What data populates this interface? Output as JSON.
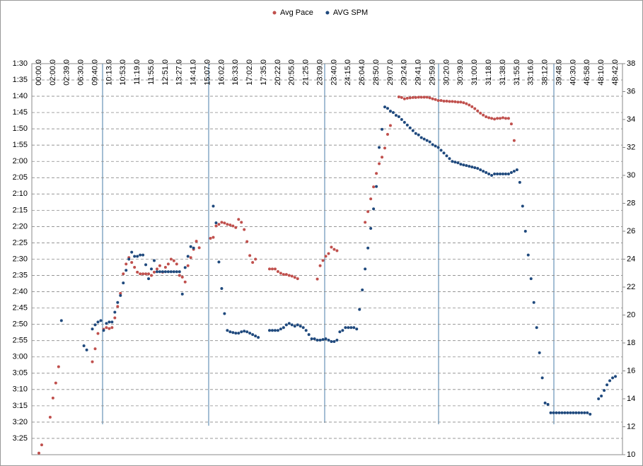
{
  "chart_data": {
    "type": "scatter",
    "categories": [
      "00:00.0",
      null,
      null,
      null,
      null,
      "02:00.0",
      null,
      null,
      null,
      null,
      "02:39.0",
      null,
      null,
      null,
      null,
      "06:30.0",
      null,
      null,
      null,
      null,
      "09:40.0",
      null,
      null,
      null,
      null,
      "10:13.0",
      null,
      null,
      null,
      null,
      "10:53.0",
      null,
      null,
      null,
      null,
      "11:19.0",
      null,
      null,
      null,
      null,
      "11:55.0",
      null,
      null,
      null,
      null,
      "12:51.0",
      null,
      null,
      null,
      null,
      "13:27.0",
      null,
      null,
      null,
      null,
      "14:41.0",
      null,
      null,
      null,
      null,
      "15:07.0",
      null,
      null,
      null,
      null,
      "16:02.0",
      null,
      null,
      null,
      null,
      "16:33.0",
      null,
      null,
      null,
      null,
      "17:02.0",
      null,
      null,
      null,
      null,
      "17:35.0",
      null,
      null,
      null,
      null,
      "20:22.0",
      null,
      null,
      null,
      null,
      "20:55.0",
      null,
      null,
      null,
      null,
      "21:25.0",
      null,
      null,
      null,
      null,
      "23:09.0",
      null,
      null,
      null,
      null,
      "23:40.0",
      null,
      null,
      null,
      null,
      "24:15.0",
      null,
      null,
      null,
      null,
      "26:04.0",
      null,
      null,
      null,
      null,
      "28:50.0",
      null,
      null,
      null,
      null,
      "29:07.0",
      null,
      null,
      null,
      null,
      "29:24.0",
      null,
      null,
      null,
      null,
      "29:41.0",
      null,
      null,
      null,
      null,
      "29:59.0",
      null,
      null,
      null,
      null,
      "30:20.0",
      null,
      null,
      null,
      null,
      "30:39.0",
      null,
      null,
      null,
      null,
      "31:00.0",
      null,
      null,
      null,
      null,
      "31:18.0",
      null,
      null,
      null,
      null,
      "31:38.0",
      null,
      null,
      null,
      null,
      "31:55.0",
      null,
      null,
      null,
      null,
      "33:16.0",
      null,
      null,
      null,
      null,
      "38:12.0",
      null,
      null,
      null,
      null,
      "39:48.0",
      null,
      null,
      null,
      null,
      "40:30.0",
      null,
      null,
      null,
      null,
      "46:58.0",
      null,
      null,
      null,
      null,
      "48:10.0",
      null,
      null,
      null,
      null,
      "48:42.0"
    ],
    "series": [
      {
        "name": "Avg Pace",
        "color": "#c0504d",
        "axis": "y",
        "values": [
          209.5,
          207,
          null,
          null,
          198.5,
          192.6,
          188,
          183,
          null,
          null,
          null,
          null,
          null,
          null,
          null,
          null,
          null,
          null,
          null,
          181.5,
          177.5,
          172.8,
          null,
          171.5,
          171,
          171.3,
          171,
          168,
          164.5,
          160.5,
          154.5,
          151.5,
          149.5,
          151,
          152.5,
          154,
          154.5,
          154.5,
          154.5,
          154.5,
          155,
          154,
          153,
          152,
          154,
          152.5,
          151.5,
          150,
          150.5,
          151.5,
          155,
          155.5,
          157,
          152,
          149.5,
          147,
          144.5,
          146.5,
          null,
          null,
          null,
          143.6,
          143.3,
          139.8,
          139.3,
          138.7,
          138.9,
          139.3,
          139.5,
          139.8,
          140.3,
          137.8,
          138.7,
          140.9,
          144.6,
          148.9,
          151,
          150,
          null,
          null,
          null,
          null,
          153,
          153,
          153,
          153.8,
          154.3,
          154.7,
          154.7,
          155,
          155.2,
          155.6,
          156,
          null,
          null,
          null,
          null,
          null,
          null,
          156.1,
          152,
          150.4,
          149.1,
          148.3,
          146.3,
          147,
          147.4,
          null,
          null,
          null,
          null,
          null,
          null,
          null,
          null,
          null,
          138.7,
          135.4,
          131.5,
          127.8,
          123.7,
          120.7,
          118.7,
          115.9,
          111.7,
          109,
          null,
          null,
          100.2,
          100.4,
          100.8,
          100.6,
          100.5,
          100.4,
          100.4,
          100.3,
          100.3,
          100.3,
          100.3,
          100.5,
          100.8,
          101,
          101.3,
          101.3,
          101.5,
          101.5,
          101.6,
          101.6,
          101.7,
          101.8,
          101.8,
          102,
          102.3,
          102.7,
          103.2,
          103.8,
          104.5,
          105.2,
          105.8,
          106.3,
          106.6,
          106.8,
          107,
          106.8,
          106.8,
          106.6,
          106.8,
          106.8,
          108.5,
          113.6,
          null,
          null,
          null,
          null,
          null,
          null,
          null,
          null,
          null,
          null,
          null,
          null,
          null,
          null,
          null,
          null,
          null,
          null,
          null,
          null,
          null,
          null,
          null,
          null,
          null,
          null,
          null,
          null,
          null,
          null,
          null,
          null,
          null,
          null,
          null,
          null
        ]
      },
      {
        "name": "AVG SPM",
        "color": "#1f497d",
        "axis": "y2",
        "values": [
          null,
          null,
          null,
          null,
          null,
          null,
          null,
          null,
          19.6,
          null,
          null,
          null,
          null,
          null,
          null,
          null,
          17.8,
          17.5,
          null,
          19.0,
          19.3,
          19.5,
          19.6,
          18.9,
          19.4,
          19.5,
          19.5,
          20.2,
          20.9,
          21.4,
          22.3,
          23.2,
          24.0,
          24.5,
          24.2,
          24.2,
          24.3,
          24.3,
          23.6,
          22.6,
          23.3,
          23.9,
          23.1,
          23.1,
          23.1,
          23.1,
          23.1,
          23.1,
          23.1,
          23.1,
          23.1,
          21.5,
          23.4,
          24.2,
          24.9,
          24.8,
          null,
          null,
          null,
          null,
          null,
          null,
          27.8,
          26.6,
          23.8,
          21.9,
          20.1,
          18.9,
          18.8,
          18.75,
          18.7,
          18.7,
          18.8,
          18.85,
          18.8,
          18.7,
          18.6,
          18.5,
          18.4,
          null,
          null,
          null,
          18.9,
          18.9,
          18.9,
          18.9,
          19.0,
          19.1,
          19.3,
          19.4,
          19.3,
          19.2,
          19.3,
          19.2,
          19.1,
          18.9,
          18.6,
          18.3,
          18.3,
          18.2,
          18.2,
          18.25,
          18.3,
          18.2,
          18.1,
          18.1,
          18.2,
          18.8,
          18.9,
          19.1,
          19.1,
          19.1,
          19.1,
          19.0,
          20.4,
          21.8,
          23.3,
          24.8,
          26.2,
          27.6,
          29.2,
          32.0,
          33.3,
          34.9,
          34.8,
          34.6,
          34.5,
          34.3,
          34.2,
          34.0,
          33.8,
          33.6,
          33.4,
          33.2,
          33.0,
          32.9,
          32.7,
          32.6,
          32.5,
          32.4,
          32.2,
          32.1,
          32.0,
          31.8,
          31.6,
          31.4,
          31.2,
          31.0,
          30.95,
          30.9,
          30.8,
          30.75,
          30.7,
          30.65,
          30.6,
          30.55,
          30.5,
          30.4,
          30.3,
          30.2,
          30.1,
          30.0,
          30.1,
          30.1,
          30.1,
          30.1,
          30.1,
          30.1,
          30.2,
          30.3,
          30.4,
          29.5,
          27.8,
          26.0,
          24.3,
          22.6,
          20.9,
          19.1,
          17.3,
          15.5,
          13.7,
          13.6,
          13.0,
          13.0,
          13.0,
          13.0,
          13.0,
          13.0,
          13.0,
          13.0,
          13.0,
          13.0,
          13.0,
          13.0,
          13.0,
          13.0,
          12.9,
          null,
          null,
          14.0,
          14.2,
          14.6,
          15.0,
          15.3,
          15.5,
          15.6
        ]
      }
    ],
    "ylim": [
      90,
      210
    ],
    "y_inverted": true,
    "yticks": [
      {
        "value": 90,
        "label": "1:30"
      },
      {
        "value": 95,
        "label": "1:35"
      },
      {
        "value": 100,
        "label": "1:40"
      },
      {
        "value": 105,
        "label": "1:45"
      },
      {
        "value": 110,
        "label": "1:50"
      },
      {
        "value": 115,
        "label": "1:55"
      },
      {
        "value": 120,
        "label": "2:00"
      },
      {
        "value": 125,
        "label": "2:05"
      },
      {
        "value": 130,
        "label": "2:10"
      },
      {
        "value": 135,
        "label": "2:15"
      },
      {
        "value": 140,
        "label": "2:20"
      },
      {
        "value": 145,
        "label": "2:25"
      },
      {
        "value": 150,
        "label": "2:30"
      },
      {
        "value": 155,
        "label": "2:35"
      },
      {
        "value": 160,
        "label": "2:40"
      },
      {
        "value": 165,
        "label": "2:45"
      },
      {
        "value": 170,
        "label": "2:50"
      },
      {
        "value": 175,
        "label": "2:55"
      },
      {
        "value": 180,
        "label": "3:00"
      },
      {
        "value": 185,
        "label": "3:05"
      },
      {
        "value": 190,
        "label": "3:10"
      },
      {
        "value": 195,
        "label": "3:15"
      },
      {
        "value": 200,
        "label": "3:20"
      },
      {
        "value": 205,
        "label": "3:25"
      }
    ],
    "y2lim": [
      10,
      38
    ],
    "y2ticks": [
      10,
      12,
      14,
      16,
      18,
      20,
      22,
      24,
      26,
      28,
      30,
      32,
      34,
      36,
      38
    ],
    "grid": true,
    "legend": "top"
  }
}
